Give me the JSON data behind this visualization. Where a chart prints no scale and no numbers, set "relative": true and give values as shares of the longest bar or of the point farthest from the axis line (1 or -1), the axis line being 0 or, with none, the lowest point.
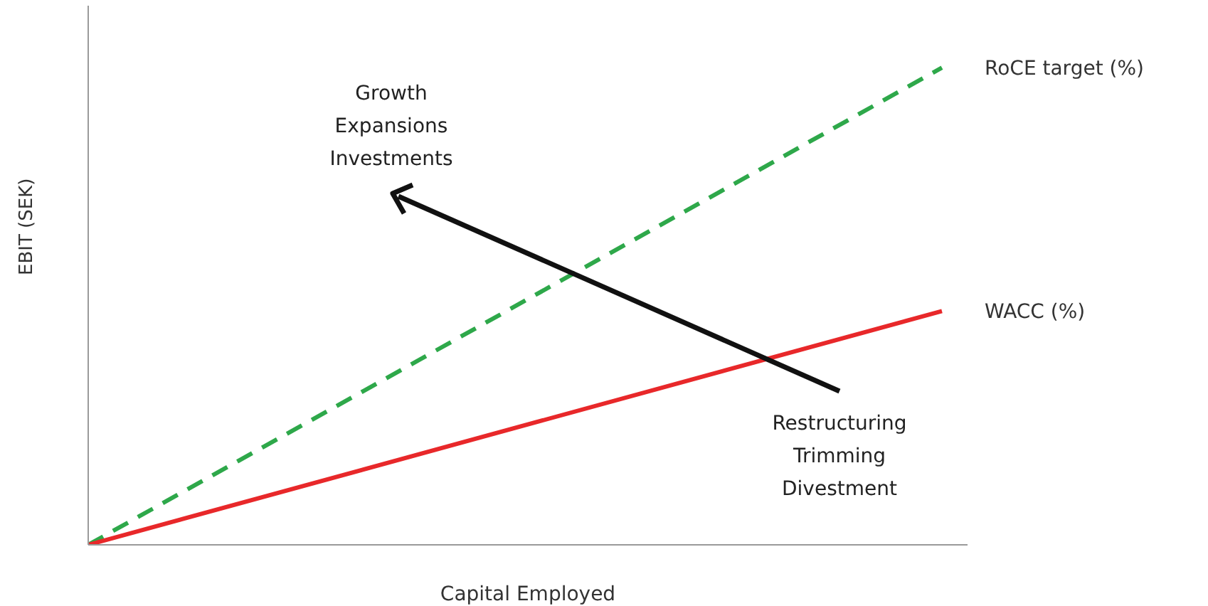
{
  "chart_data": {
    "type": "line",
    "relative": true,
    "xlabel": "Capital Employed",
    "ylabel": "EBIT (SEK)",
    "categories": [
      null,
      null
    ],
    "series": [
      {
        "name": "RoCE target (%)",
        "color": "#2ea84a",
        "values": [
          0,
          1
        ],
        "line_style": "dashed"
      },
      {
        "name": "WACC (%)",
        "color": "#e8282a",
        "values": [
          0,
          0.49
        ],
        "line_style": "solid"
      }
    ],
    "annotations": [
      "Growth\nExpansions\nInvestments",
      "Restructuring\nTrimming\nDivestment"
    ],
    "marker": "none"
  }
}
